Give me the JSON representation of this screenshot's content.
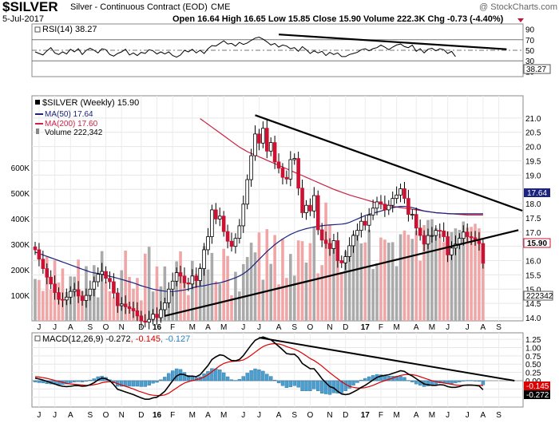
{
  "header": {
    "symbol": "$SILVER",
    "name": "Silver - Continuous Contract (EOD)",
    "exchange": "CME",
    "date": "5-Jul-2017",
    "watermark": "@ StockCharts.com",
    "ohlc_text": "Open 16.64  High 16.65  Low 15.85  Close 15.90  Volume 222.3K  Chg -0.73 (-4.40%)",
    "change_arrow": "down-triangle-icon"
  },
  "colors": {
    "up_candle": "#ffffff",
    "down_candle": "#cc1133",
    "ma50": "#1a237e",
    "ma200": "#cc2244",
    "volume_up": "#aaaaaa",
    "volume_down": "#f0a6a6",
    "macd_line": "#000000",
    "signal_line": "#dd0000",
    "histogram": "#4a9fd0",
    "trendline": "#000000",
    "rsi_line": "#000000"
  },
  "chart_data": [
    {
      "type": "line",
      "panel": "rsi",
      "legend": "RSI(14) 38.27",
      "current_value": "38.27",
      "ylim": [
        0,
        100
      ],
      "y_ticks": [
        "90",
        "70",
        "50",
        "30",
        "10"
      ],
      "reference_lines": [
        70,
        50,
        30
      ],
      "series": [
        {
          "name": "RSI(14)",
          "values": [
            47,
            44,
            41,
            49,
            55,
            45,
            42,
            47,
            43,
            52,
            47,
            53,
            42,
            50,
            54,
            50,
            45,
            53,
            51,
            42,
            39,
            44,
            47,
            52,
            41,
            45,
            40,
            46,
            44,
            51,
            49,
            43,
            47,
            43,
            47,
            40,
            37,
            41,
            50,
            47,
            52,
            45,
            50,
            44,
            53,
            59,
            58,
            63,
            68,
            62,
            63,
            58,
            65,
            61,
            64,
            69,
            73,
            75,
            71,
            66,
            60,
            63,
            56,
            60,
            58,
            53,
            55,
            48,
            57,
            51,
            44,
            49,
            45,
            48,
            40,
            46,
            42,
            45,
            38,
            38,
            42,
            44,
            46,
            51,
            53,
            49,
            53,
            55,
            60,
            56,
            51,
            56,
            60,
            62,
            57,
            55,
            60,
            48,
            53,
            45,
            52,
            54,
            49,
            53,
            51,
            44,
            48,
            38
          ]
        }
      ],
      "trendline": {
        "start_week": 62,
        "start_value": 80,
        "end_week": 120,
        "end_value": 52
      }
    },
    {
      "type": "candlestick",
      "panel": "price",
      "title": "$SILVER (Weekly) 15.90",
      "legend": [
        "MA(50) 17.64",
        "MA(200) 17.60",
        "Volume 222,342"
      ],
      "last_close": "15.90",
      "ma50_value": "17.64",
      "ylim": [
        14.0,
        21.5
      ],
      "y_ticks": [
        "21.0",
        "20.5",
        "20.0",
        "19.5",
        "19.0",
        "18.5",
        "18.0",
        "17.5",
        "17.0",
        "16.5",
        "16.0",
        "15.5",
        "15.0",
        "14.5",
        "14.0"
      ],
      "x_labels": [
        "J",
        "J",
        "A",
        "S",
        "O",
        "N",
        "D",
        "16",
        "F",
        "M",
        "A",
        "M",
        "J",
        "J",
        "A",
        "S",
        "O",
        "N",
        "D",
        "17",
        "F",
        "M",
        "A",
        "M",
        "J",
        "J",
        "A",
        "S"
      ],
      "x_label_weeks": [
        1,
        5,
        9,
        14,
        18,
        22,
        27,
        31,
        35,
        40,
        44,
        48,
        53,
        57,
        62,
        66,
        70,
        75,
        79,
        84,
        88,
        92,
        97,
        101,
        105,
        110,
        114,
        118
      ],
      "volume_axis_ticks": [
        "600K",
        "500K",
        "400K",
        "300K",
        "200K",
        "100K"
      ],
      "volume_axis_values": [
        600,
        500,
        400,
        300,
        200,
        100
      ],
      "volume_last": "222342",
      "closes": [
        16.38,
        16.05,
        15.72,
        15.42,
        15.18,
        14.88,
        14.64,
        14.62,
        14.72,
        14.92,
        14.98,
        14.76,
        14.6,
        14.78,
        15.0,
        15.26,
        15.52,
        15.62,
        15.38,
        15.26,
        14.86,
        14.42,
        14.48,
        14.38,
        14.32,
        14.24,
        14.06,
        13.88,
        13.84,
        13.94,
        14.12,
        14.0,
        14.28,
        14.52,
        15.0,
        15.28,
        15.58,
        15.46,
        15.22,
        15.18,
        15.46,
        15.3,
        15.72,
        16.38,
        16.84,
        17.78,
        17.46,
        17.56,
        17.02,
        16.68,
        16.5,
        16.78,
        17.22,
        17.98,
        18.84,
        19.68,
        20.44,
        20.12,
        20.64,
        19.84,
        20.14,
        19.46,
        19.24,
        18.92,
        18.86,
        19.54,
        19.58,
        18.54,
        17.68,
        17.94,
        17.74,
        18.28,
        17.08,
        16.72,
        16.6,
        16.42,
        16.7,
        16.0,
        15.92,
        16.14,
        16.52,
        16.88,
        17.06,
        17.38,
        17.24,
        17.6,
        17.84,
        18.06,
        17.98,
        17.78,
        17.94,
        18.18,
        18.3,
        18.52,
        18.18,
        17.62,
        17.62,
        17.14,
        16.88,
        16.58,
        16.88,
        16.88,
        17.06,
        17.04,
        16.84,
        16.2,
        16.44,
        16.58,
        16.78,
        17.0,
        16.84,
        16.8,
        16.7,
        16.6,
        15.9
      ],
      "ma50": [
        16.3,
        16.25,
        16.2,
        16.15,
        16.1,
        16.05,
        16.0,
        15.95,
        15.9,
        15.85,
        15.8,
        15.75,
        15.7,
        15.65,
        15.6,
        15.57,
        15.55,
        15.52,
        15.48,
        15.45,
        15.42,
        15.38,
        15.34,
        15.3,
        15.26,
        15.22,
        15.17,
        15.12,
        15.08,
        15.04,
        15.0,
        14.97,
        14.95,
        14.93,
        14.92,
        14.92,
        14.93,
        14.95,
        14.97,
        15.0,
        15.04,
        15.08,
        15.1,
        15.12,
        15.15,
        15.18,
        15.2,
        15.22,
        15.26,
        15.3,
        15.35,
        15.4,
        15.46,
        15.54,
        15.64,
        15.76,
        15.9,
        16.04,
        16.18,
        16.32,
        16.44,
        16.56,
        16.66,
        16.76,
        16.84,
        16.92,
        16.98,
        17.04,
        17.08,
        17.12,
        17.15,
        17.18,
        17.2,
        17.22,
        17.24,
        17.25,
        17.26,
        17.27,
        17.28,
        17.3,
        17.34,
        17.4,
        17.46,
        17.52,
        17.58,
        17.62,
        17.66,
        17.7,
        17.74,
        17.78,
        17.82,
        17.86,
        17.88,
        17.9,
        17.9,
        17.88,
        17.86,
        17.82,
        17.78,
        17.74,
        17.72,
        17.7,
        17.68,
        17.67,
        17.66,
        17.65,
        17.64,
        17.64,
        17.64,
        17.64,
        17.64,
        17.64,
        17.64,
        17.64,
        17.64
      ],
      "ma200": [
        null,
        null,
        null,
        null,
        null,
        null,
        null,
        null,
        null,
        null,
        null,
        null,
        null,
        null,
        null,
        null,
        null,
        null,
        null,
        null,
        null,
        null,
        null,
        null,
        null,
        null,
        null,
        null,
        null,
        null,
        null,
        null,
        null,
        null,
        null,
        null,
        null,
        null,
        null,
        null,
        null,
        null,
        20.98,
        20.88,
        20.78,
        20.68,
        20.58,
        20.48,
        20.38,
        20.28,
        20.18,
        20.08,
        19.98,
        19.9,
        19.82,
        19.76,
        19.7,
        19.64,
        19.58,
        19.52,
        19.46,
        19.4,
        19.34,
        19.28,
        19.22,
        19.16,
        19.1,
        19.04,
        18.98,
        18.92,
        18.86,
        18.8,
        18.74,
        18.68,
        18.62,
        18.56,
        18.5,
        18.45,
        18.4,
        18.35,
        18.3,
        18.26,
        18.22,
        18.18,
        18.14,
        18.1,
        18.06,
        18.02,
        17.99,
        17.96,
        17.93,
        17.9,
        17.88,
        17.86,
        17.84,
        17.82,
        17.8,
        17.78,
        17.76,
        17.74,
        17.72,
        17.7,
        17.68,
        17.67,
        17.66,
        17.65,
        17.64,
        17.63,
        17.62,
        17.61,
        17.6,
        17.6,
        17.6,
        17.6,
        17.6
      ],
      "volume_k": [
        164,
        160,
        117,
        252,
        122,
        238,
        150,
        205,
        113,
        174,
        173,
        240,
        117,
        214,
        115,
        218,
        92,
        273,
        153,
        116,
        92,
        112,
        198,
        275,
        172,
        126,
        168,
        80,
        263,
        290,
        115,
        213,
        135,
        213,
        103,
        112,
        233,
        272,
        164,
        101,
        235,
        184,
        211,
        293,
        201,
        266,
        155,
        145,
        282,
        254,
        100,
        192,
        115,
        222,
        250,
        306,
        268,
        346,
        161,
        359,
        223,
        336,
        143,
        321,
        168,
        262,
        177,
        315,
        312,
        228,
        304,
        367,
        186,
        218,
        463,
        377,
        295,
        288,
        191,
        273,
        254,
        341,
        331,
        303,
        307,
        357,
        203,
        225,
        326,
        318,
        306,
        308,
        214,
        339,
        353,
        337,
        321,
        353,
        235,
        375,
        395,
        398,
        363,
        341,
        308,
        351,
        348,
        362,
        356,
        389,
        365,
        368,
        380,
        362,
        222
      ],
      "trendlines": [
        {
          "start_week": 56,
          "start_value": 21.1,
          "end_week": 124,
          "end_value": 17.75
        },
        {
          "start_week": 33,
          "start_value": 14.06,
          "end_week": 123,
          "end_value": 17.07
        }
      ]
    },
    {
      "type": "line",
      "panel": "macd",
      "legend": "MACD(12,26,9) -0.272, -0.145, -0.127",
      "macd_label": "MACD(12,26,9) -0.272",
      "signal_label": ", -0.145",
      "hist_label": ", -0.127",
      "current_values": [
        "-0.145",
        "-0.272"
      ],
      "ylim": [
        -0.7,
        1.35
      ],
      "y_ticks": [
        "1.25",
        "1.00",
        "0.75",
        "0.50",
        "0.25",
        "0.00",
        "-0.25",
        "-0.50"
      ],
      "series": [
        {
          "name": "MACD",
          "values": [
            0.08,
            0.05,
            0.02,
            -0.02,
            -0.06,
            -0.1,
            -0.14,
            -0.17,
            -0.18,
            -0.17,
            -0.15,
            -0.15,
            -0.17,
            -0.16,
            -0.12,
            -0.06,
            0.02,
            0.08,
            0.06,
            0.0,
            -0.12,
            -0.26,
            -0.3,
            -0.34,
            -0.38,
            -0.42,
            -0.47,
            -0.52,
            -0.56,
            -0.56,
            -0.52,
            -0.5,
            -0.42,
            -0.32,
            -0.16,
            0.0,
            0.14,
            0.2,
            0.18,
            0.13,
            0.14,
            0.12,
            0.18,
            0.32,
            0.46,
            0.64,
            0.72,
            0.78,
            0.76,
            0.68,
            0.61,
            0.6,
            0.64,
            0.76,
            0.92,
            1.08,
            1.22,
            1.28,
            1.32,
            1.28,
            1.24,
            1.14,
            1.04,
            0.93,
            0.82,
            0.8,
            0.8,
            0.7,
            0.52,
            0.44,
            0.36,
            0.36,
            0.22,
            0.06,
            -0.06,
            -0.18,
            -0.22,
            -0.32,
            -0.4,
            -0.42,
            -0.4,
            -0.34,
            -0.28,
            -0.2,
            -0.14,
            -0.06,
            0.02,
            0.1,
            0.14,
            0.16,
            0.18,
            0.22,
            0.26,
            0.3,
            0.28,
            0.2,
            0.14,
            0.06,
            -0.02,
            -0.1,
            -0.12,
            -0.14,
            -0.14,
            -0.12,
            -0.13,
            -0.18,
            -0.2,
            -0.2,
            -0.18,
            -0.14,
            -0.13,
            -0.13,
            -0.14,
            -0.16,
            -0.272
          ]
        },
        {
          "name": "Signal",
          "values": [
            0.12,
            0.11,
            0.09,
            0.07,
            0.04,
            0.01,
            -0.02,
            -0.05,
            -0.08,
            -0.1,
            -0.11,
            -0.12,
            -0.13,
            -0.14,
            -0.14,
            -0.12,
            -0.1,
            -0.06,
            -0.04,
            -0.03,
            -0.05,
            -0.09,
            -0.13,
            -0.17,
            -0.21,
            -0.25,
            -0.3,
            -0.34,
            -0.38,
            -0.42,
            -0.44,
            -0.45,
            -0.45,
            -0.43,
            -0.38,
            -0.3,
            -0.22,
            -0.14,
            -0.07,
            -0.03,
            0.0,
            0.03,
            0.06,
            0.11,
            0.18,
            0.27,
            0.36,
            0.45,
            0.52,
            0.56,
            0.58,
            0.59,
            0.6,
            0.63,
            0.69,
            0.77,
            0.86,
            0.95,
            1.03,
            1.08,
            1.11,
            1.12,
            1.11,
            1.08,
            1.03,
            0.99,
            0.95,
            0.9,
            0.83,
            0.75,
            0.67,
            0.61,
            0.53,
            0.44,
            0.34,
            0.24,
            0.15,
            0.06,
            -0.03,
            -0.11,
            -0.17,
            -0.2,
            -0.22,
            -0.22,
            -0.21,
            -0.18,
            -0.14,
            -0.09,
            -0.04,
            0.0,
            0.04,
            0.08,
            0.12,
            0.16,
            0.18,
            0.19,
            0.18,
            0.16,
            0.12,
            0.08,
            0.04,
            0.0,
            -0.03,
            -0.05,
            -0.07,
            -0.09,
            -0.11,
            -0.13,
            -0.14,
            -0.14,
            -0.14,
            -0.14,
            -0.14,
            -0.14,
            -0.145
          ]
        }
      ],
      "trendline": {
        "start_week": 57,
        "start_value": 1.3,
        "end_week": 122,
        "end_value": 0.0
      },
      "x_labels": [
        "J",
        "J",
        "A",
        "S",
        "O",
        "N",
        "D",
        "16",
        "F",
        "M",
        "A",
        "M",
        "J",
        "J",
        "A",
        "S",
        "O",
        "N",
        "D",
        "17",
        "F",
        "M",
        "A",
        "M",
        "J",
        "J",
        "A",
        "S"
      ],
      "x_label_weeks": [
        1,
        5,
        9,
        14,
        18,
        22,
        27,
        31,
        35,
        40,
        44,
        48,
        53,
        57,
        62,
        66,
        70,
        75,
        79,
        84,
        88,
        92,
        97,
        101,
        105,
        110,
        114,
        118
      ]
    }
  ]
}
